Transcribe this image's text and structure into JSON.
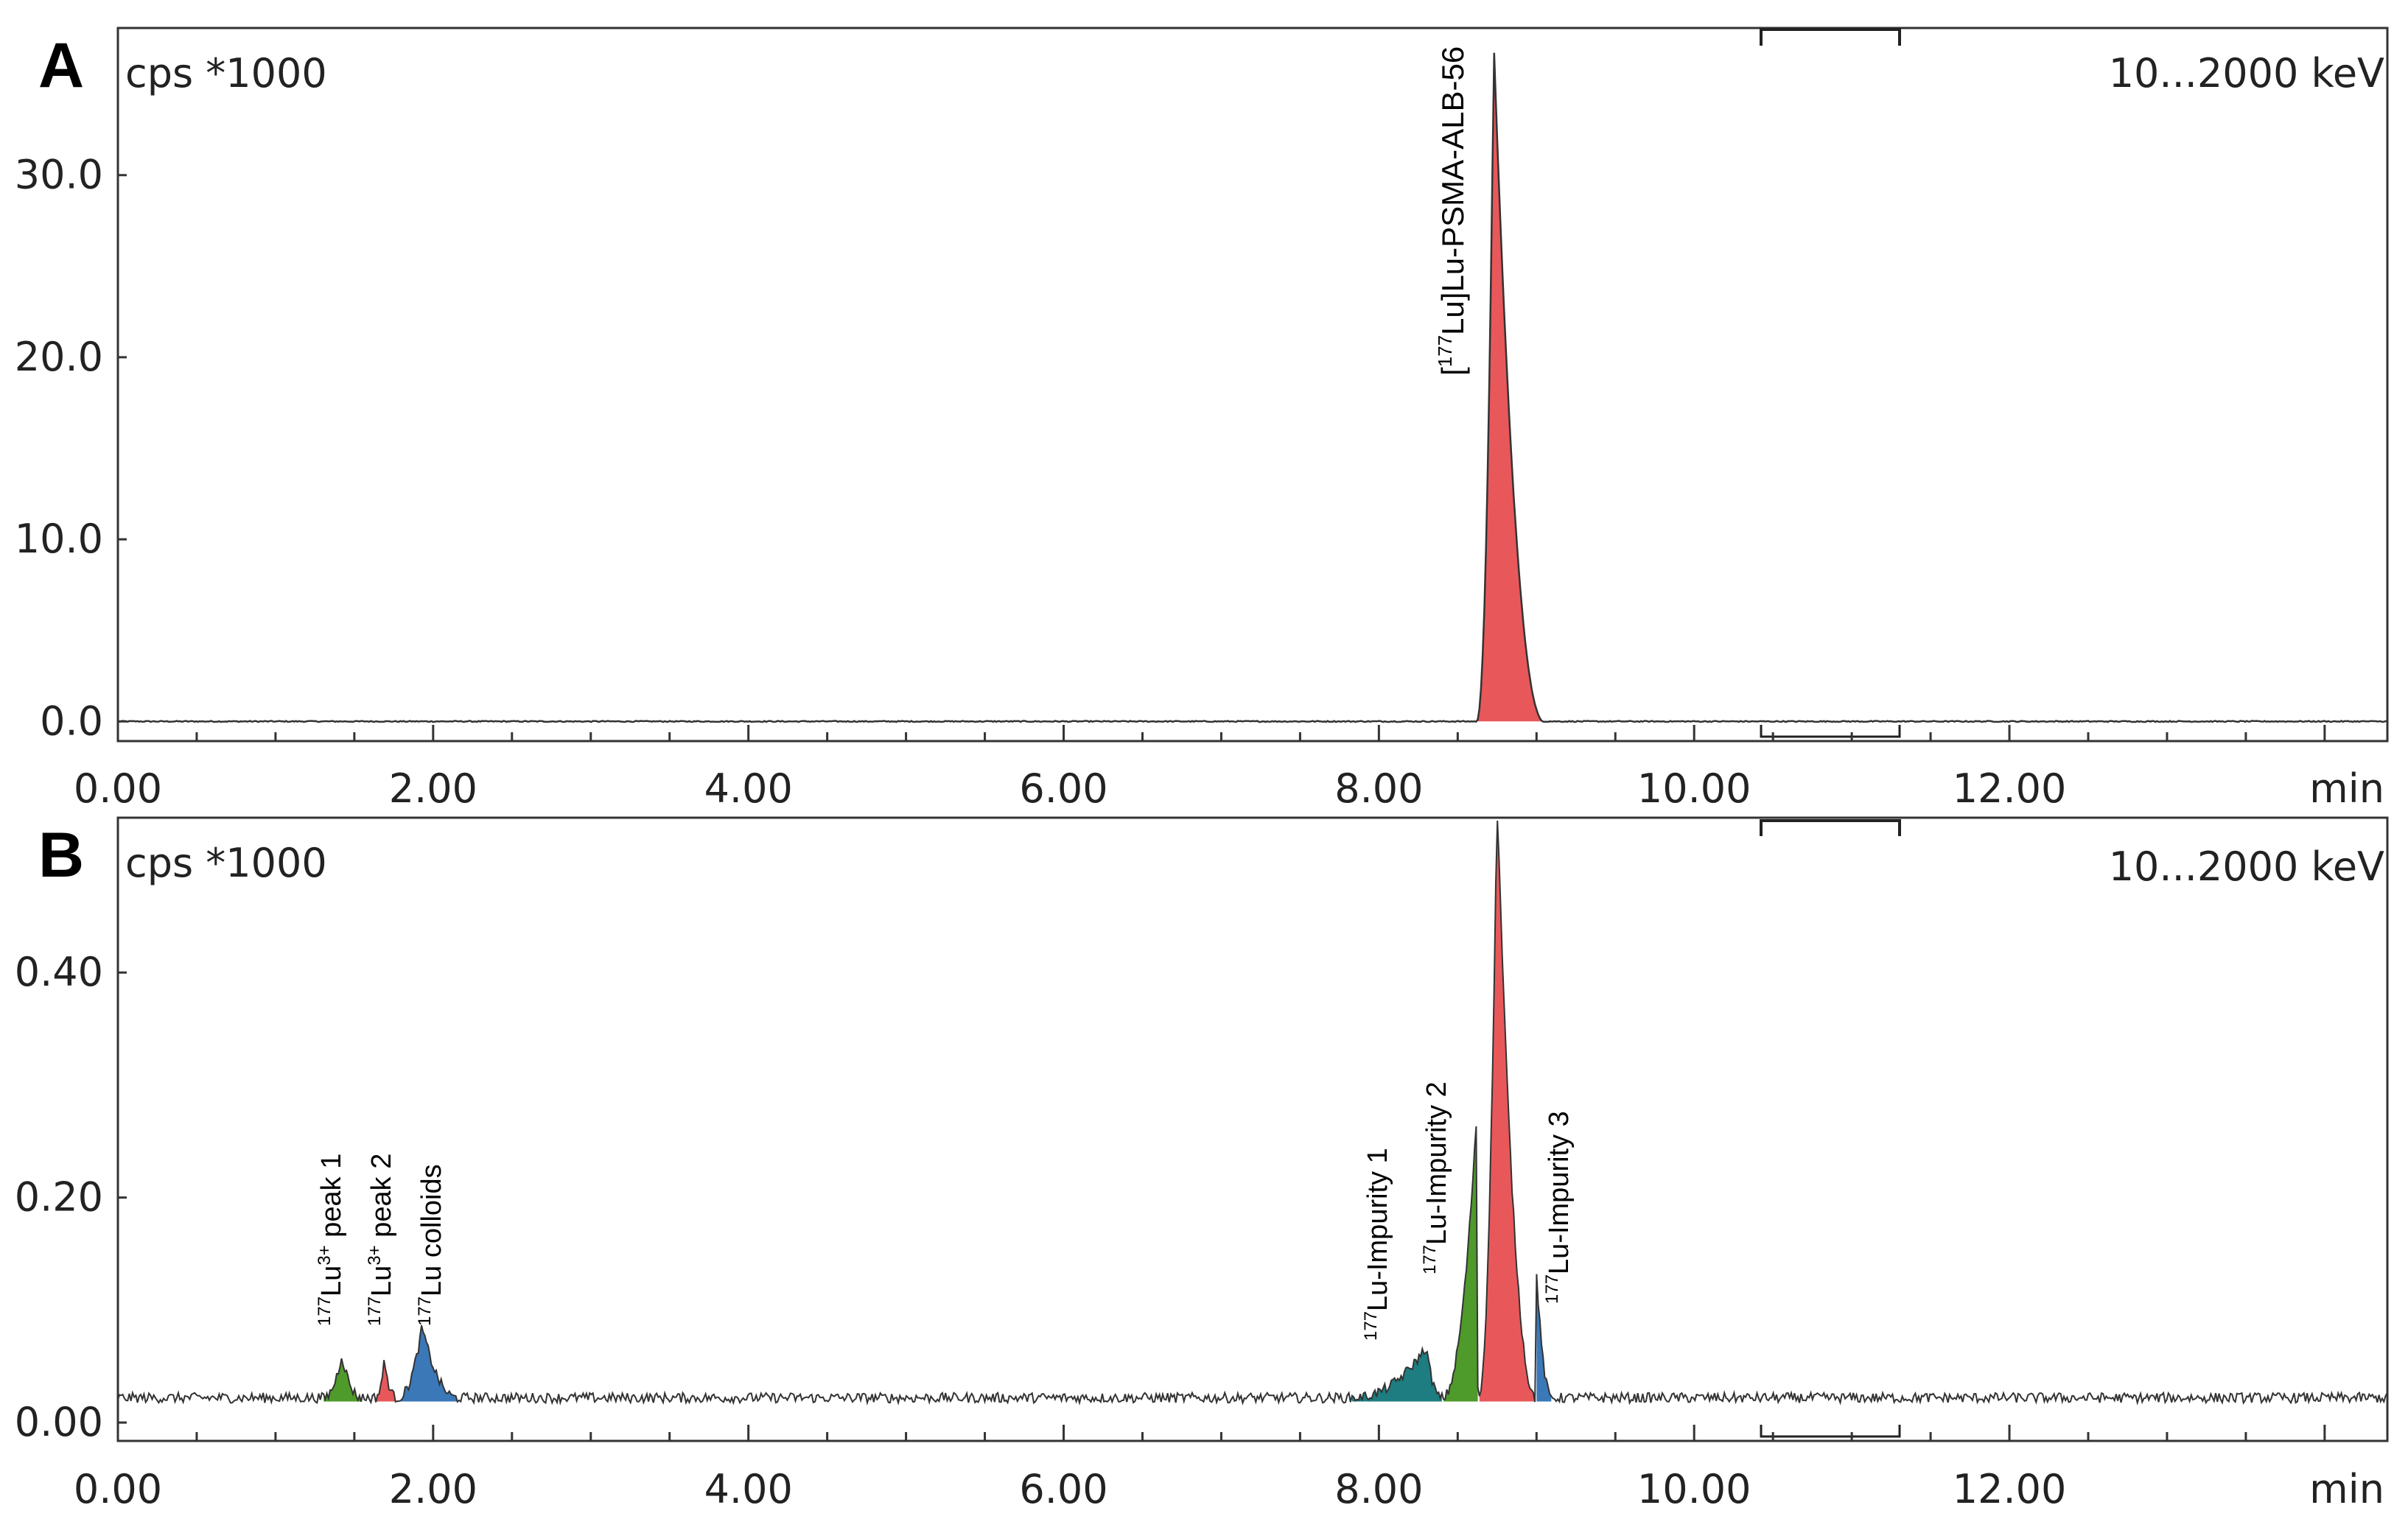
{
  "chart_data": [
    {
      "panel": "A",
      "type": "line",
      "ylabel": "cps *1000",
      "energy_window": "10...2000 keV",
      "xunit": "min",
      "xlim": [
        0,
        14.5
      ],
      "ylim": [
        -1,
        38
      ],
      "xticks": [
        "0.00",
        "2.00",
        "4.00",
        "6.00",
        "8.00",
        "10.00",
        "12.00"
      ],
      "xtick_values": [
        0,
        2,
        4,
        6,
        8,
        10,
        12
      ],
      "yticks": [
        "0.0",
        "10.0",
        "20.0",
        "30.0"
      ],
      "ytick_values": [
        0,
        10,
        20,
        30
      ],
      "baseline": 0.0,
      "peaks": [
        {
          "name": "[177Lu]Lu-PSMA-ALB-56",
          "label_main": "Lu-PSMA-ALB-56",
          "label_sup": "177",
          "color": "#e8585a",
          "start": 8.62,
          "apex": 8.73,
          "end": 9.05,
          "height": 37.0
        }
      ]
    },
    {
      "panel": "B",
      "type": "line",
      "ylabel": "cps *1000",
      "energy_window": "10...2000 keV",
      "xunit": "min",
      "xlim": [
        0,
        14.5
      ],
      "ylim": [
        -0.015,
        0.535
      ],
      "xticks": [
        "0.00",
        "2.00",
        "4.00",
        "6.00",
        "8.00",
        "10.00",
        "12.00"
      ],
      "xtick_values": [
        0,
        2,
        4,
        6,
        8,
        10,
        12
      ],
      "yticks": [
        "0.00",
        "0.20",
        "0.40"
      ],
      "ytick_values": [
        0,
        0.2,
        0.4
      ],
      "baseline": 0.022,
      "peaks": [
        {
          "name": "177Lu3+ peak 1",
          "sup1": "177",
          "core": "Lu",
          "sup2": "3+",
          "tail": " peak 1",
          "color": "#4e9a2a",
          "start": 1.3,
          "apex": 1.42,
          "end": 1.55,
          "height": 0.038
        },
        {
          "name": "177Lu3+ peak 2",
          "sup1": "177",
          "core": "Lu",
          "sup2": "3+",
          "tail": " peak 2",
          "color": "#e8585a",
          "start": 1.63,
          "apex": 1.69,
          "end": 1.77,
          "height": 0.032
        },
        {
          "name": "177Lu colloids",
          "sup1": "177",
          "core": "Lu colloids",
          "sup2": "",
          "tail": "",
          "color": "#3a78b8",
          "start": 1.77,
          "apex": 1.93,
          "end": 2.16,
          "height": 0.063
        },
        {
          "name": "177Lu-Impurity 1",
          "sup1": "177",
          "core": "Lu-Impurity 1",
          "sup2": "",
          "tail": "",
          "color": "#1d7d80",
          "start": 7.82,
          "apex": 8.3,
          "end": 8.4,
          "height": 0.045
        },
        {
          "name": "177Lu-Impurity 2",
          "sup1": "177",
          "core": "Lu-Impurity 2",
          "sup2": "",
          "tail": "",
          "color": "#4e9a2a",
          "start": 8.4,
          "apex": 8.62,
          "end": 8.63,
          "height": 0.25
        },
        {
          "name": "[177Lu]Lu-PSMA-ALB-56",
          "sup1": "",
          "core": "",
          "sup2": "",
          "tail": "",
          "color": "#e8585a",
          "start": 8.63,
          "apex": 8.75,
          "end": 9.0,
          "height": 0.535
        },
        {
          "name": "177Lu-Impurity 3",
          "sup1": "177",
          "core": "Lu-Impurity 3",
          "sup2": "",
          "tail": "",
          "color": "#3a78b8",
          "start": 9.0,
          "apex": 9.0,
          "end": 9.1,
          "height": 0.11
        }
      ]
    }
  ]
}
